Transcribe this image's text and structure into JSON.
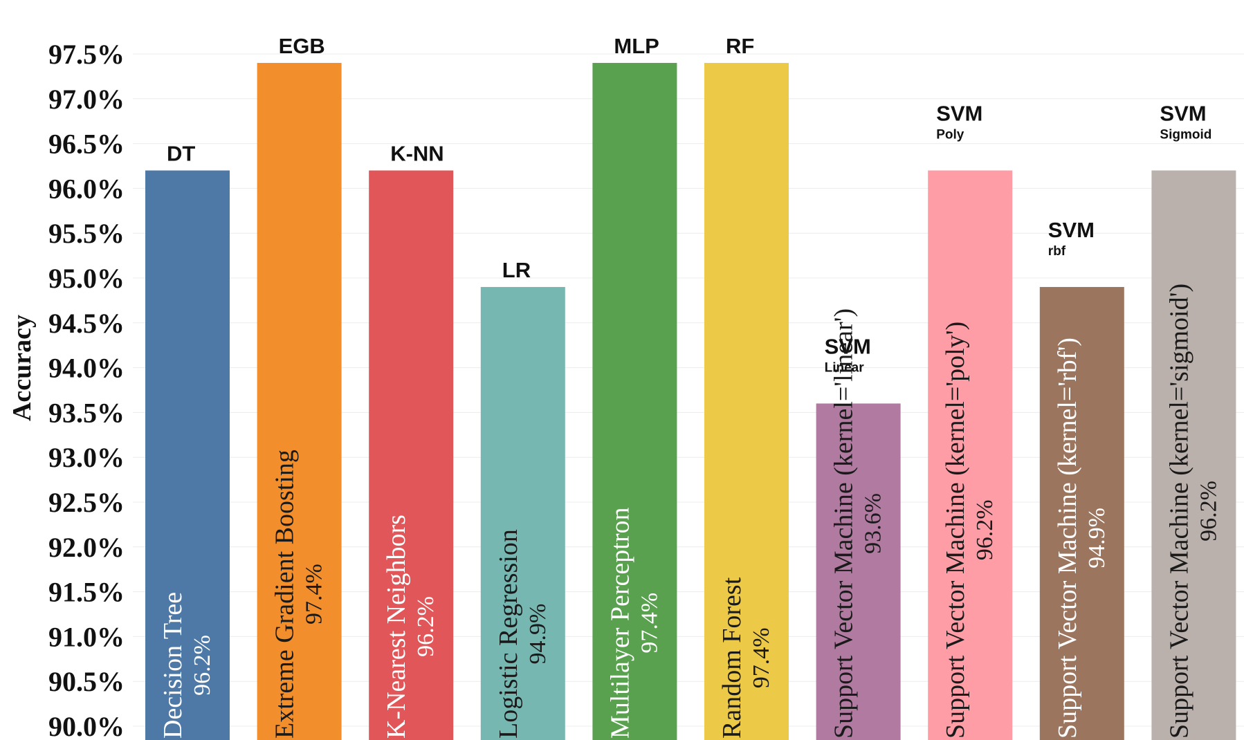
{
  "chart_data": {
    "type": "bar",
    "title": "",
    "xlabel": "",
    "ylabel": "Accuracy",
    "ylim": [
      90.0,
      97.5
    ],
    "grid": true,
    "y_ticks": [
      "90.0%",
      "90.5%",
      "91.0%",
      "91.5%",
      "92.0%",
      "92.5%",
      "93.0%",
      "93.5%",
      "94.0%",
      "94.5%",
      "95.0%",
      "95.5%",
      "96.0%",
      "96.5%",
      "97.0%",
      "97.5%"
    ],
    "categories": [
      "DT",
      "EGB",
      "K-NN",
      "LR",
      "MLP",
      "RF",
      "SVM Linear",
      "SVM Poly",
      "SVM rbf",
      "SVM Sigmoid"
    ],
    "values": [
      96.2,
      97.4,
      96.2,
      94.9,
      97.4,
      97.4,
      93.6,
      96.2,
      94.9,
      96.2
    ],
    "bars": [
      {
        "abbr": "DT",
        "sub": "",
        "name": "Decision Tree",
        "value": 96.2,
        "value_label": "96.2%",
        "color": "#4e79a7",
        "text_color": "#ffffff"
      },
      {
        "abbr": "EGB",
        "sub": "",
        "name": "Extreme Gradient Boosting",
        "value": 97.4,
        "value_label": "97.4%",
        "color": "#f28e2b",
        "text_color": "#1a1a1a"
      },
      {
        "abbr": "K-NN",
        "sub": "",
        "name": "K-Nearest Neighbors",
        "value": 96.2,
        "value_label": "96.2%",
        "color": "#e15759",
        "text_color": "#ffffff"
      },
      {
        "abbr": "LR",
        "sub": "",
        "name": "Logistic Regression",
        "value": 94.9,
        "value_label": "94.9%",
        "color": "#76b7b2",
        "text_color": "#1a1a1a"
      },
      {
        "abbr": "MLP",
        "sub": "",
        "name": "Multilayer Perceptron",
        "value": 97.4,
        "value_label": "97.4%",
        "color": "#59a14f",
        "text_color": "#ffffff"
      },
      {
        "abbr": "RF",
        "sub": "",
        "name": "Random Forest",
        "value": 97.4,
        "value_label": "97.4%",
        "color": "#edc948",
        "text_color": "#1a1a1a"
      },
      {
        "abbr": "SVM",
        "sub": "Linear",
        "name": "Support Vector Machine (kernel='linear')",
        "value": 93.6,
        "value_label": "93.6%",
        "color": "#b07aa1",
        "text_color": "#1a1a1a"
      },
      {
        "abbr": "SVM",
        "sub": "Poly",
        "name": "Support Vector Machine (kernel='poly')",
        "value": 96.2,
        "value_label": "96.2%",
        "color": "#ff9da7",
        "text_color": "#1a1a1a"
      },
      {
        "abbr": "SVM",
        "sub": "rbf",
        "name": "Support Vector Machine (kernel='rbf')",
        "value": 94.9,
        "value_label": "94.9%",
        "color": "#9c755f",
        "text_color": "#ffffff"
      },
      {
        "abbr": "SVM",
        "sub": "Sigmoid",
        "name": "Support Vector Machine (kernel='sigmoid')",
        "value": 96.2,
        "value_label": "96.2%",
        "color": "#bab0ac",
        "text_color": "#1a1a1a"
      }
    ]
  }
}
